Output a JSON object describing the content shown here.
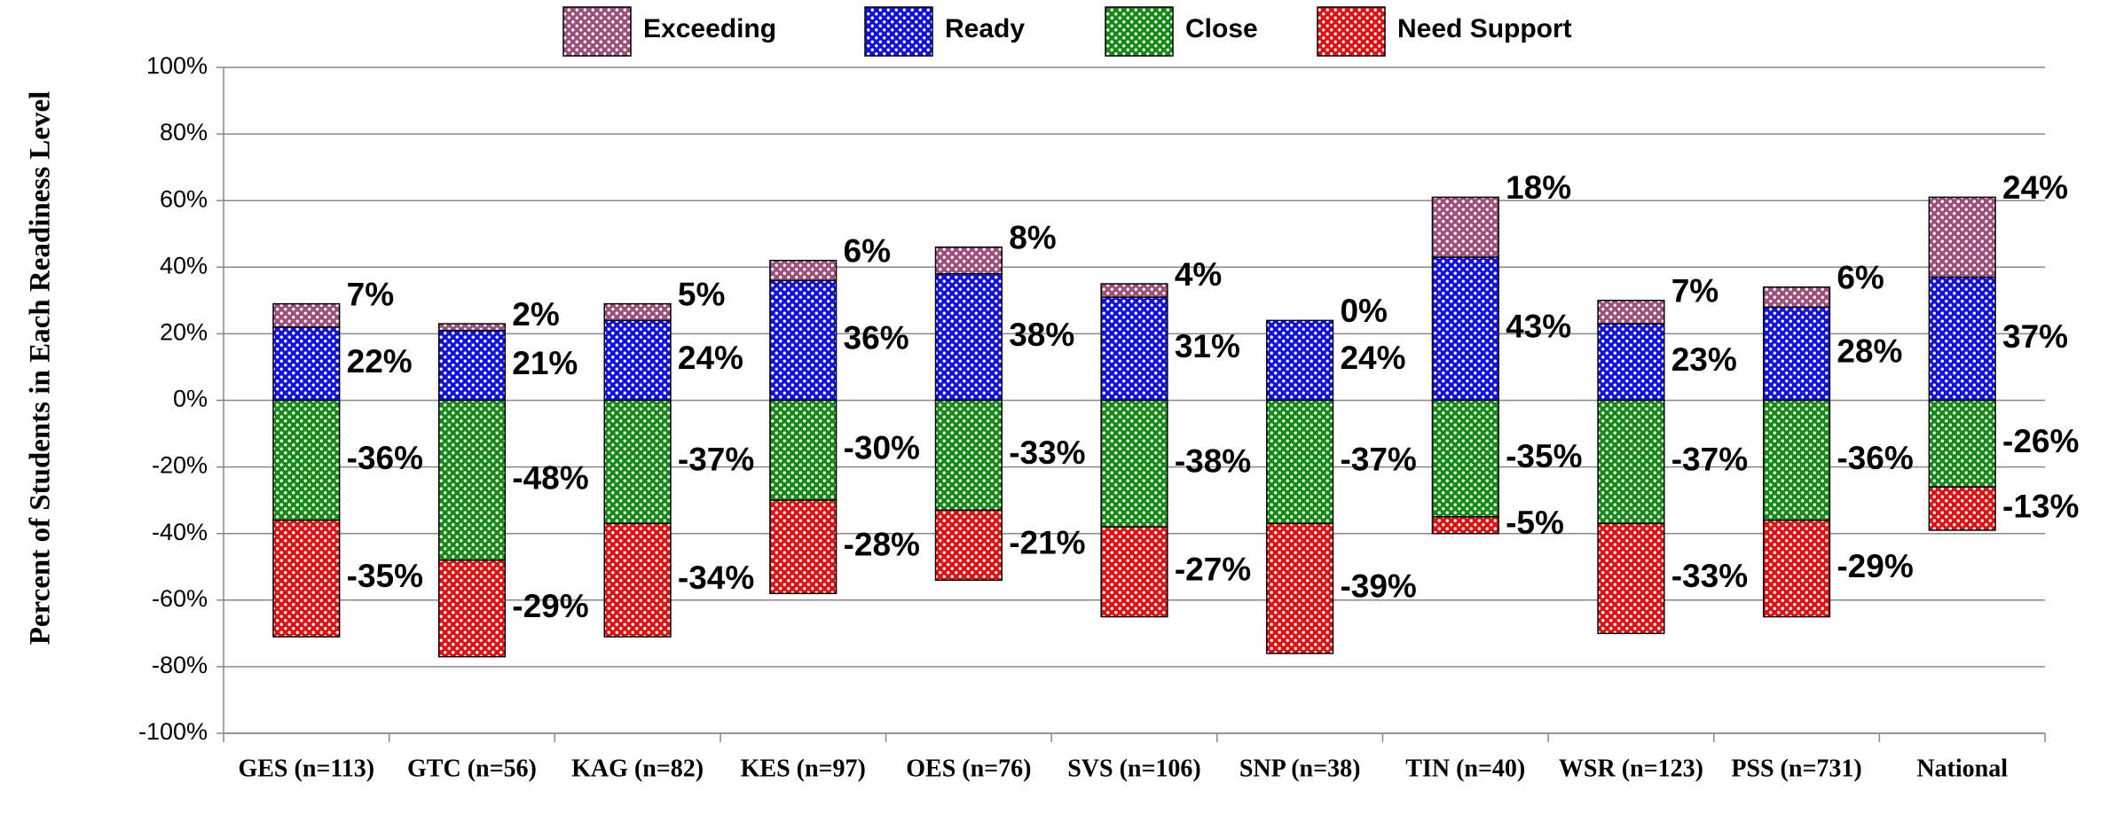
{
  "chart_data": {
    "type": "bar",
    "stacked": true,
    "y_label": "Percent of Students in Each Readiness Level",
    "categories": [
      "GES (n=113)",
      "GTC (n=56)",
      "KAG (n=82)",
      "KES (n=97)",
      "OES (n=76)",
      "SVS (n=106)",
      "SNP (n=38)",
      "TIN (n=40)",
      "WSR (n=123)",
      "PSS (n=731)",
      "National"
    ],
    "series": [
      {
        "name": "Exceeding",
        "color": "#9b4f7a",
        "values": [
          7,
          2,
          5,
          6,
          8,
          4,
          0,
          18,
          7,
          6,
          24
        ],
        "value_labels": [
          "7%",
          "2%",
          "5%",
          "6%",
          "8%",
          "4%",
          "0%",
          "18%",
          "7%",
          "6%",
          "24%"
        ]
      },
      {
        "name": "Ready",
        "color": "#1010e0",
        "values": [
          22,
          21,
          24,
          36,
          38,
          31,
          24,
          43,
          23,
          28,
          37
        ],
        "value_labels": [
          "22%",
          "21%",
          "24%",
          "36%",
          "38%",
          "31%",
          "24%",
          "43%",
          "23%",
          "28%",
          "37%"
        ]
      },
      {
        "name": "Close",
        "color": "#138a13",
        "values": [
          -36,
          -48,
          -37,
          -30,
          -33,
          -38,
          -37,
          -35,
          -37,
          -36,
          -26
        ],
        "value_labels": [
          "-36%",
          "-48%",
          "-37%",
          "-30%",
          "-33%",
          "-38%",
          "-37%",
          "-35%",
          "-37%",
          "-36%",
          "-26%"
        ]
      },
      {
        "name": "Need Support",
        "color": "#e01010",
        "values": [
          -35,
          -29,
          -34,
          -28,
          -21,
          -27,
          -39,
          -5,
          -33,
          -29,
          -13
        ],
        "value_labels": [
          "-35%",
          "-29%",
          "-34%",
          "-28%",
          "-21%",
          "-27%",
          "-39%",
          "-5%",
          "-33%",
          "-29%",
          "-13%"
        ]
      }
    ],
    "ylim": [
      -100,
      100
    ],
    "yticks": [
      {
        "value": -100,
        "label": "-100%"
      },
      {
        "value": -80,
        "label": "-80%"
      },
      {
        "value": -60,
        "label": "-60%"
      },
      {
        "value": -40,
        "label": "-40%"
      },
      {
        "value": -20,
        "label": "-20%"
      },
      {
        "value": 0,
        "label": "0%"
      },
      {
        "value": 20,
        "label": "20%"
      },
      {
        "value": 40,
        "label": "40%"
      },
      {
        "value": 60,
        "label": "60%"
      },
      {
        "value": 80,
        "label": "80%"
      },
      {
        "value": 100,
        "label": "100%"
      }
    ],
    "grid": true,
    "legend": "top"
  }
}
